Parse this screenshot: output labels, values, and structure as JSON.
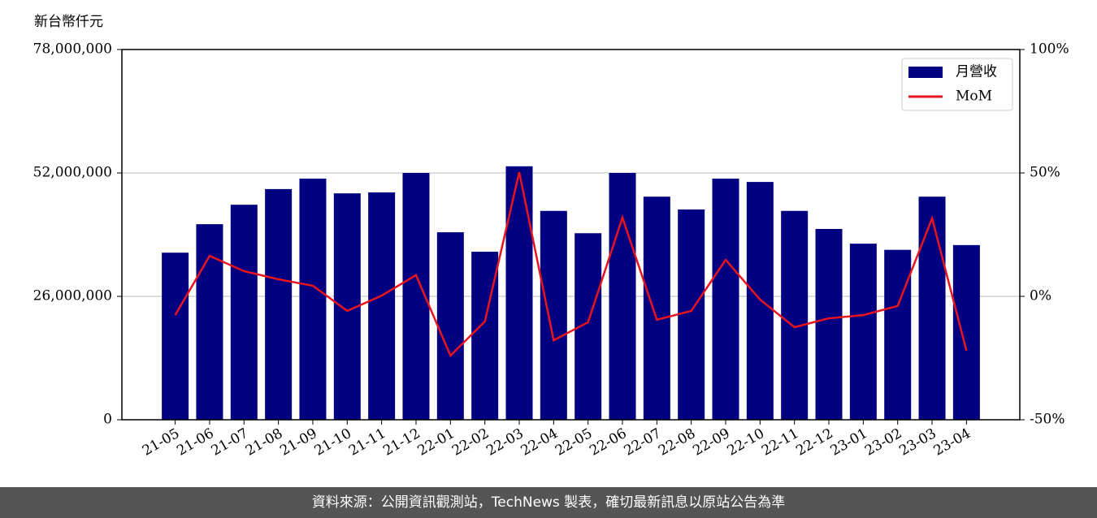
{
  "chart_data": {
    "type": "bar_line",
    "y_label": "新台幣仟元",
    "footer": "資料來源：公開資訊觀測站，TechNews 製表，確切最新訊息以原站公告為準",
    "categories": [
      "21-05",
      "21-06",
      "21-07",
      "21-08",
      "21-09",
      "21-10",
      "21-11",
      "21-12",
      "22-01",
      "22-02",
      "22-03",
      "22-04",
      "22-05",
      "22-06",
      "22-07",
      "22-08",
      "22-09",
      "22-10",
      "22-11",
      "22-12",
      "23-01",
      "23-02",
      "23-03",
      "23-04"
    ],
    "series": [
      {
        "name": "月營收",
        "type": "bar",
        "color": "#000080",
        "values": [
          35200000,
          41200000,
          45300000,
          48600000,
          50800000,
          47700000,
          47900000,
          52000000,
          39500000,
          35400000,
          53400000,
          44000000,
          39300000,
          52000000,
          47000000,
          44300000,
          50800000,
          50100000,
          44000000,
          40200000,
          37100000,
          35800000,
          47000000,
          36800000
        ]
      },
      {
        "name": "MoM",
        "type": "line",
        "color": "#e8141e",
        "axis": "y2",
        "values": [
          -7.6,
          16.4,
          10.2,
          6.9,
          4.3,
          -5.9,
          0.3,
          8.6,
          -24,
          -10.2,
          50.3,
          -17.8,
          -10.5,
          31.9,
          -9.5,
          -5.9,
          14.8,
          -1.3,
          -12.5,
          -8.9,
          -7.6,
          -3.9,
          31.6,
          -22
        ]
      }
    ],
    "ylim": [
      0,
      78000000
    ],
    "yticks": [
      0,
      {
        "value": 26000000,
        "label": "26,000,000"
      },
      {
        "value": 52000000,
        "label": "52,000,000"
      },
      {
        "value": 78000000,
        "label": "78,000,000"
      }
    ],
    "y2lim": [
      -50,
      100
    ],
    "y2ticks": [
      {
        "value": -50,
        "label": "-50%"
      },
      {
        "value": 0,
        "label": "0%"
      },
      {
        "value": 50,
        "label": "50%"
      },
      {
        "value": 100,
        "label": "100%"
      }
    ],
    "grid": true,
    "legend": "upper right"
  }
}
